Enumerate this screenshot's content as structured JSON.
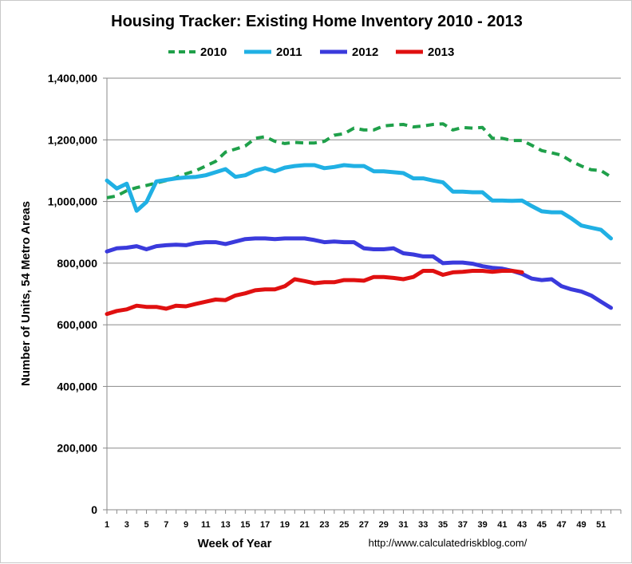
{
  "chart_data": {
    "type": "line",
    "title": "Housing Tracker: Existing Home Inventory 2010 - 2013",
    "xlabel": "Week of Year",
    "ylabel": "Number of Units, 54 Metro Areas",
    "source": "http://www.calculatedriskblog.com/",
    "ylim": [
      0,
      1400000
    ],
    "xlim": [
      1,
      53
    ],
    "grid": true,
    "legend_position": "top",
    "x_tick_labels": [
      "1",
      "3",
      "5",
      "7",
      "9",
      "11",
      "13",
      "15",
      "17",
      "19",
      "21",
      "23",
      "25",
      "27",
      "29",
      "31",
      "33",
      "35",
      "37",
      "39",
      "41",
      "43",
      "45",
      "47",
      "49",
      "51"
    ],
    "y_tick_labels": [
      "0",
      "200,000",
      "400,000",
      "600,000",
      "800,000",
      "1,000,000",
      "1,200,000",
      "1,400,000"
    ],
    "x": [
      1,
      2,
      3,
      4,
      5,
      6,
      7,
      8,
      9,
      10,
      11,
      12,
      13,
      14,
      15,
      16,
      17,
      18,
      19,
      20,
      21,
      22,
      23,
      24,
      25,
      26,
      27,
      28,
      29,
      30,
      31,
      32,
      33,
      34,
      35,
      36,
      37,
      38,
      39,
      40,
      41,
      42,
      43,
      44,
      45,
      46,
      47,
      48,
      49,
      50,
      51,
      52,
      53
    ],
    "series": [
      {
        "name": "2010",
        "color": "#1fa04a",
        "style": "dashed",
        "values": [
          1012000,
          1018000,
          1035000,
          1045000,
          1052000,
          1060000,
          1068000,
          1078000,
          1090000,
          1100000,
          1115000,
          1130000,
          1160000,
          1170000,
          1180000,
          1205000,
          1210000,
          1195000,
          1188000,
          1192000,
          1190000,
          1190000,
          1195000,
          1215000,
          1220000,
          1238000,
          1232000,
          1232000,
          1245000,
          1248000,
          1250000,
          1242000,
          1245000,
          1250000,
          1252000,
          1232000,
          1240000,
          1238000,
          1240000,
          1205000,
          1205000,
          1198000,
          1198000,
          1182000,
          1165000,
          1158000,
          1150000,
          1130000,
          1115000,
          1103000,
          1100000,
          1080000,
          null
        ]
      },
      {
        "name": "2011",
        "color": "#20b0e4",
        "style": "solid",
        "values": [
          1068000,
          1042000,
          1058000,
          970000,
          998000,
          1065000,
          1070000,
          1075000,
          1078000,
          1080000,
          1085000,
          1095000,
          1105000,
          1080000,
          1085000,
          1100000,
          1108000,
          1098000,
          1110000,
          1115000,
          1118000,
          1118000,
          1108000,
          1112000,
          1118000,
          1115000,
          1115000,
          1098000,
          1098000,
          1095000,
          1092000,
          1075000,
          1075000,
          1068000,
          1062000,
          1032000,
          1032000,
          1030000,
          1030000,
          1003000,
          1003000,
          1002000,
          1003000,
          985000,
          968000,
          965000,
          965000,
          945000,
          922000,
          915000,
          908000,
          880000,
          null
        ]
      },
      {
        "name": "2012",
        "color": "#3a3adc",
        "style": "solid",
        "values": [
          838000,
          848000,
          850000,
          855000,
          845000,
          855000,
          858000,
          860000,
          858000,
          865000,
          868000,
          868000,
          862000,
          870000,
          878000,
          880000,
          880000,
          878000,
          880000,
          880000,
          880000,
          875000,
          868000,
          870000,
          868000,
          868000,
          848000,
          845000,
          845000,
          848000,
          832000,
          828000,
          822000,
          822000,
          800000,
          802000,
          802000,
          798000,
          790000,
          785000,
          782000,
          775000,
          765000,
          750000,
          745000,
          748000,
          725000,
          715000,
          708000,
          695000,
          675000,
          655000,
          null
        ]
      },
      {
        "name": "2013",
        "color": "#e01010",
        "style": "solid",
        "values": [
          635000,
          645000,
          650000,
          662000,
          658000,
          658000,
          652000,
          662000,
          660000,
          668000,
          675000,
          682000,
          680000,
          695000,
          702000,
          712000,
          715000,
          715000,
          725000,
          748000,
          742000,
          735000,
          738000,
          738000,
          745000,
          745000,
          743000,
          755000,
          755000,
          752000,
          748000,
          755000,
          775000,
          775000,
          762000,
          770000,
          772000,
          775000,
          775000,
          772000,
          775000,
          775000,
          770000,
          null,
          null,
          null,
          null,
          null,
          null,
          null,
          null,
          null,
          null
        ]
      }
    ]
  }
}
